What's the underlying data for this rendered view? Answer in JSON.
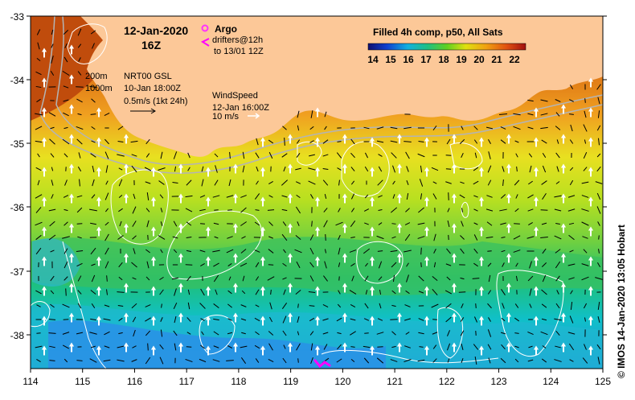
{
  "map": {
    "date": "12-Jan-2020",
    "hour": "16Z",
    "argo_label": "Argo",
    "drifters_line1": "drifters@12h",
    "drifters_line2": "to 13/01 12Z",
    "isobath_200": "200m",
    "isobath_1000": "1000m",
    "current_source": "NRT00 GSL",
    "current_time": "10-Jan 18:00Z",
    "current_scale": "0.5m/s (1kt 24h)",
    "wind_title": "WindSpeed",
    "wind_time": "12-Jan 16:00Z",
    "wind_scale": "10 m/s",
    "colorbar_title": "Filled 4h comp, p50, All Sats",
    "colorbar_ticks": [
      "14",
      "15",
      "16",
      "17",
      "18",
      "19",
      "20",
      "21",
      "22"
    ],
    "x_ticks": [
      "114",
      "115",
      "116",
      "117",
      "118",
      "119",
      "120",
      "121",
      "122",
      "123",
      "124",
      "125"
    ],
    "y_ticks": [
      "-33",
      "-34",
      "-35",
      "-36",
      "-37",
      "-38"
    ],
    "copyright": "© IMOS 14-Jan-2020 13:05 Hobart",
    "colors": {
      "land": "#fcc898",
      "argo": "#ff33ff",
      "drifter": "#ff00ff",
      "contour": "#ffffff",
      "isobath": "#b4b4b4"
    },
    "icons": [
      "argo-float-icon",
      "drifter-track-icon",
      "current-arrow-icon",
      "wind-arrow-icon"
    ]
  }
}
